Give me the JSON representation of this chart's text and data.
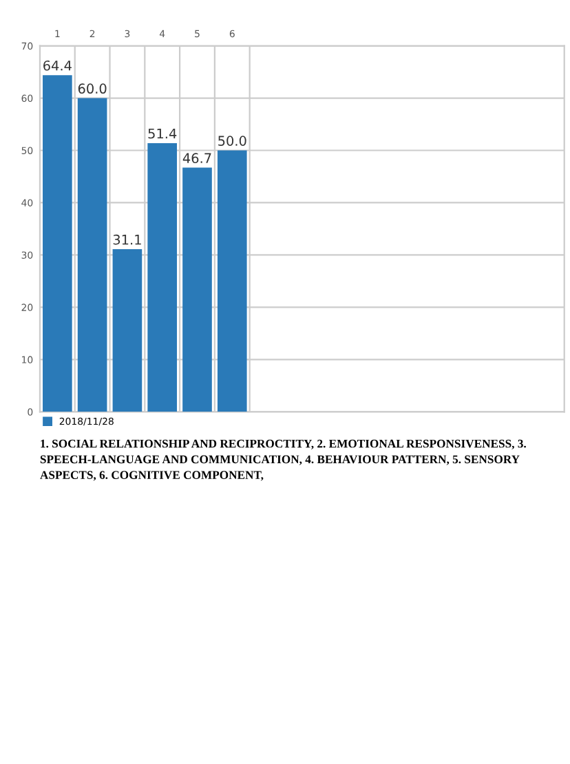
{
  "chart_data": {
    "type": "bar",
    "categories": [
      "1",
      "2",
      "3",
      "4",
      "5",
      "6",
      null,
      null,
      null,
      null,
      null,
      null,
      null,
      null,
      null
    ],
    "series": [
      {
        "name": "2018/11/28",
        "color": "#2a7ab8",
        "values": [
          64.4,
          60.0,
          31.1,
          51.4,
          46.7,
          50.0,
          null,
          null,
          null,
          null,
          null,
          null,
          null,
          null,
          null
        ],
        "value_labels": [
          "64.4",
          "60.0",
          "31.1",
          "51.4",
          "46.7",
          "50.0",
          null,
          null,
          null,
          null,
          null,
          null,
          null,
          null,
          null
        ]
      }
    ],
    "ylim": [
      0,
      70
    ],
    "yticks": [
      0,
      10,
      20,
      30,
      40,
      50,
      60,
      70
    ],
    "grid": true,
    "legend": "bottom left",
    "annotations": [
      "1. SOCIAL RELATIONSHIP AND RECIPROCTITY, 2. EMOTIONAL RESPONSIVENESS, 3. SPEECH-LANGUAGE AND COMMUNICATION, 4. BEHAVIOUR PATTERN, 5. SENSORY ASPECTS, 6. COGNITIVE COMPONENT,"
    ]
  }
}
